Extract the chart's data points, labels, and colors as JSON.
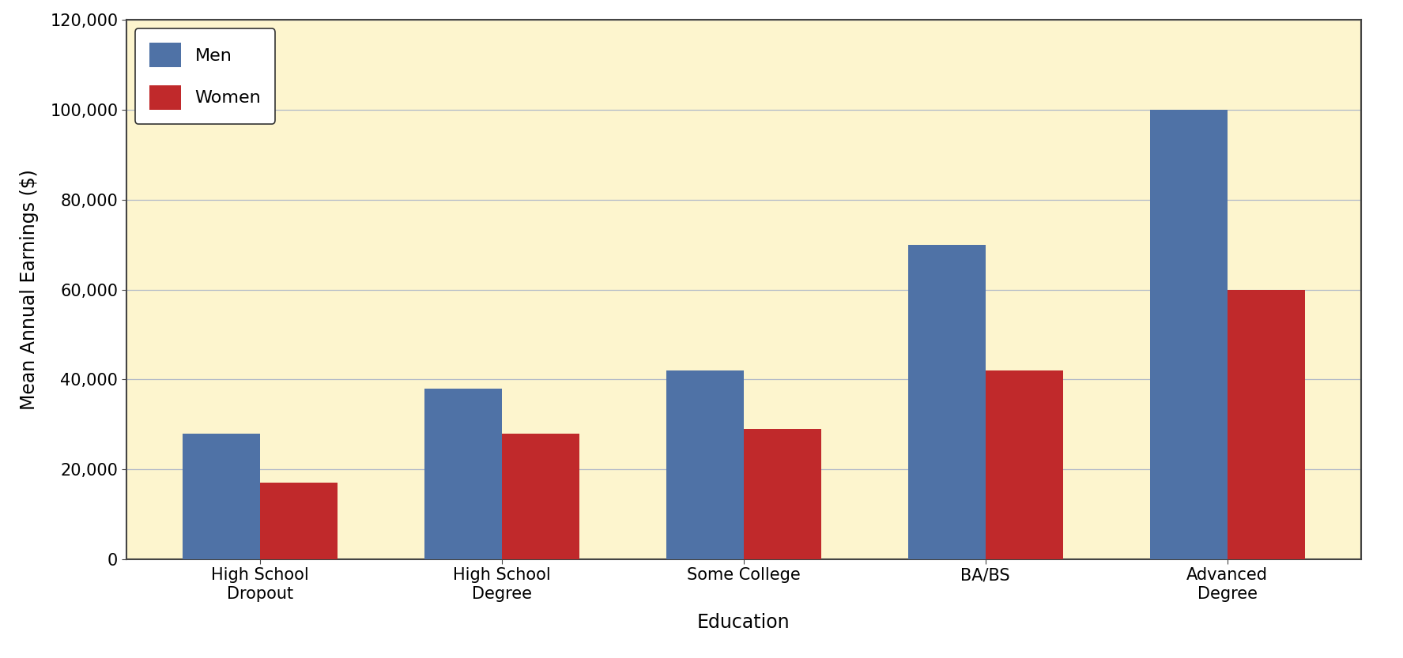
{
  "categories": [
    "High School\nDropout",
    "High School\nDegree",
    "Some College",
    "BA/BS",
    "Advanced\nDegree"
  ],
  "men_values": [
    28000,
    38000,
    42000,
    70000,
    100000
  ],
  "women_values": [
    17000,
    28000,
    29000,
    42000,
    60000
  ],
  "men_color": "#4f72a6",
  "women_color": "#c0292b",
  "background_color": "#fdf5ce",
  "ylabel": "Mean Annual Earnings ($)",
  "xlabel": "Education",
  "ylim": [
    0,
    120000
  ],
  "yticks": [
    0,
    20000,
    40000,
    60000,
    80000,
    100000,
    120000
  ],
  "ytick_labels": [
    "0",
    "20,000",
    "40,000",
    "60,000",
    "80,000",
    "100,000",
    "120,000"
  ],
  "bar_width": 0.32,
  "legend_labels": [
    "Men",
    "Women"
  ],
  "grid_color": "#b0b8c8",
  "outer_bg": "#ffffff"
}
